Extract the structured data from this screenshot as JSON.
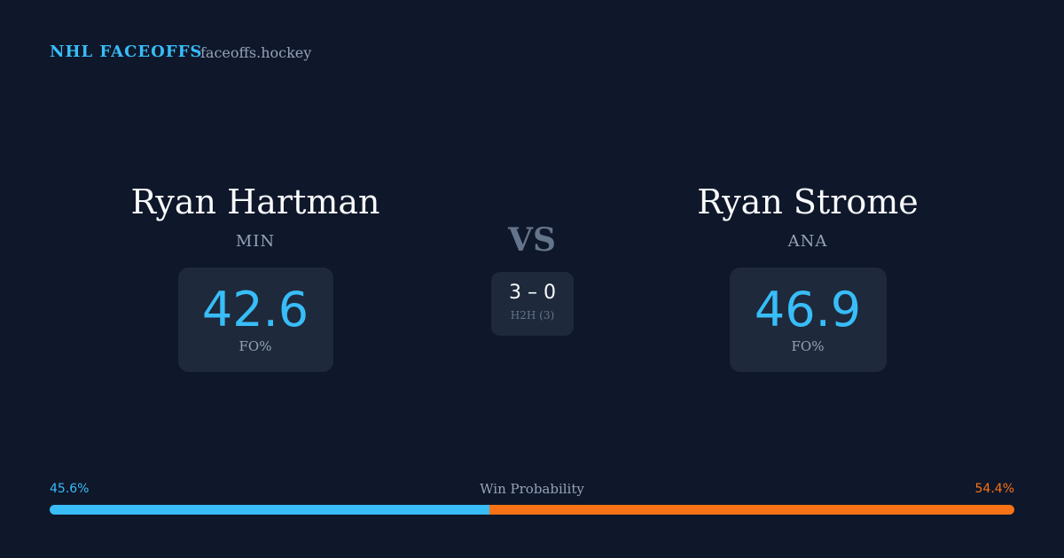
{
  "header": {
    "title": "NHL FACEOFFS",
    "site": "faceoffs.hockey"
  },
  "players": [
    {
      "name": "Ryan Hartman",
      "team": "MIN",
      "fo_pct": 42.6,
      "fo_label": "FO%"
    },
    {
      "name": "Ryan Strome",
      "team": "ANA",
      "fo_pct": 46.9,
      "fo_label": "FO%"
    }
  ],
  "versus": "VS",
  "head_to_head": {
    "score": "3 – 0",
    "label": "H2H (3)"
  },
  "win_probability": {
    "label": "Win Probability",
    "values": [
      45.6,
      54.4
    ],
    "value_labels": [
      "45.6%",
      "54.4%"
    ],
    "colors": [
      "#38bdf8",
      "#f97316"
    ]
  }
}
